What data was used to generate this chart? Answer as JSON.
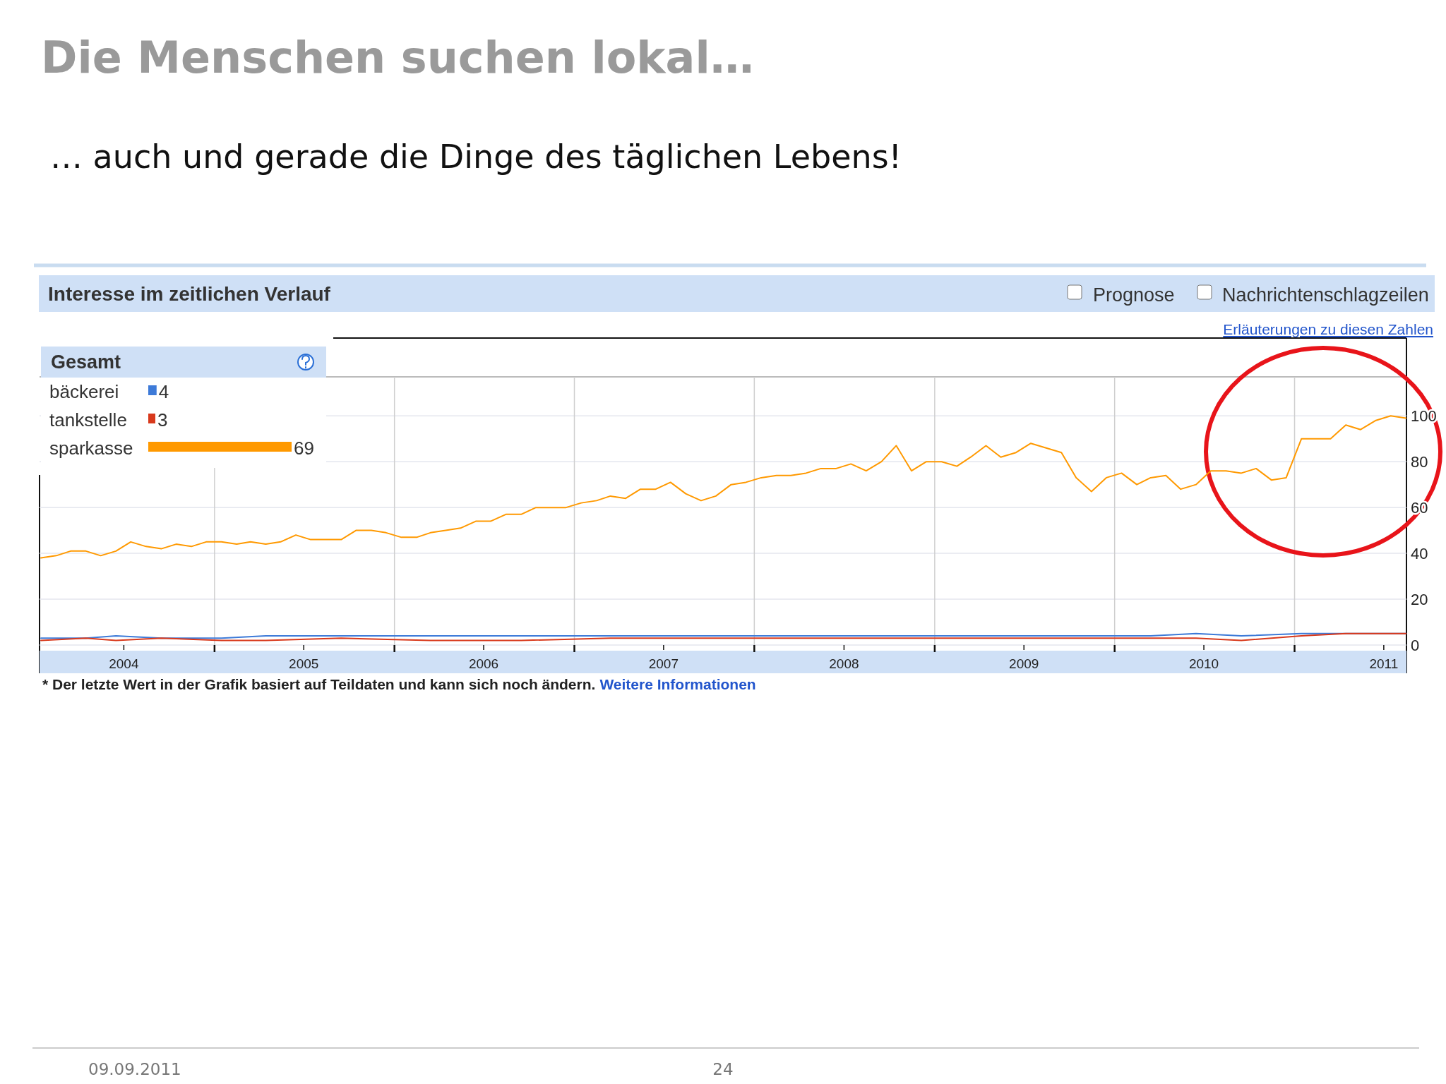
{
  "chart_data": {
    "type": "line",
    "title": "Die Menschen suchen lokal…",
    "subtitle": "… auch und gerade die Dinge des täglichen Lebens!",
    "legend_title": "Gesamt",
    "legend": "top left",
    "grid": true,
    "xlim": [
      "2004-01-12",
      "2011-08-16"
    ],
    "ylim": [
      0,
      117
    ],
    "yticks": [
      0,
      20,
      40,
      60,
      80,
      100
    ],
    "xticks": [
      {
        "value": "2004-07-01",
        "label": "2004"
      },
      {
        "value": "2005-01-01",
        "label": null
      },
      {
        "value": "2005-07-01",
        "label": "2005"
      },
      {
        "value": "2006-01-01",
        "label": null
      },
      {
        "value": "2006-07-01",
        "label": "2006"
      },
      {
        "value": "2007-01-01",
        "label": null
      },
      {
        "value": "2007-07-01",
        "label": "2007"
      },
      {
        "value": "2008-01-01",
        "label": null
      },
      {
        "value": "2008-07-01",
        "label": "2008"
      },
      {
        "value": "2009-01-01",
        "label": null
      },
      {
        "value": "2009-07-01",
        "label": "2009"
      },
      {
        "value": "2010-01-01",
        "label": null
      },
      {
        "value": "2010-07-01",
        "label": "2010"
      },
      {
        "value": "2011-01-01",
        "label": null
      },
      {
        "value": "2011-07-01",
        "label": "2011"
      }
    ],
    "series": [
      {
        "name": "bäckerei",
        "color": "#3d7ad8",
        "x": [
          "2004-01-15",
          "2004-04-15",
          "2004-06-15",
          "2004-09-15",
          "2005-01-15",
          "2005-04-15",
          "2005-09-15",
          "2006-03-15",
          "2006-09-15",
          "2007-03-15",
          "2007-09-15",
          "2008-03-15",
          "2008-09-15",
          "2009-03-15",
          "2009-09-15",
          "2010-03-15",
          "2010-06-15",
          "2010-09-15",
          "2011-01-15",
          "2011-04-15",
          "2011-08-15"
        ],
        "values": [
          3,
          3,
          4,
          3,
          3,
          4,
          4,
          4,
          4,
          4,
          4,
          4,
          4,
          4,
          4,
          4,
          5,
          4,
          5,
          5,
          5
        ]
      },
      {
        "name": "tankstelle",
        "color": "#d8391c",
        "x": [
          "2004-01-15",
          "2004-04-15",
          "2004-06-15",
          "2004-09-15",
          "2005-01-15",
          "2005-04-15",
          "2005-09-15",
          "2006-03-15",
          "2006-09-15",
          "2007-03-15",
          "2007-09-15",
          "2008-03-15",
          "2008-09-15",
          "2009-03-15",
          "2009-09-15",
          "2010-03-15",
          "2010-06-15",
          "2010-09-15",
          "2011-01-15",
          "2011-04-15",
          "2011-08-15"
        ],
        "values": [
          2,
          3,
          2,
          3,
          2,
          2,
          3,
          2,
          2,
          3,
          3,
          3,
          3,
          3,
          3,
          3,
          3,
          2,
          4,
          5,
          5
        ]
      },
      {
        "name": "sparkasse",
        "color": "#ff9900",
        "x": [
          "2004-01-15",
          "2004-02-15",
          "2004-03-15",
          "2004-04-15",
          "2004-05-15",
          "2004-06-15",
          "2004-07-15",
          "2004-08-15",
          "2004-09-15",
          "2004-10-15",
          "2004-11-15",
          "2004-12-15",
          "2005-01-15",
          "2005-02-15",
          "2005-03-15",
          "2005-04-15",
          "2005-05-15",
          "2005-06-15",
          "2005-07-15",
          "2005-08-15",
          "2005-09-15",
          "2005-10-15",
          "2005-11-15",
          "2005-12-15",
          "2006-01-15",
          "2006-02-15",
          "2006-03-15",
          "2006-04-15",
          "2006-05-15",
          "2006-06-15",
          "2006-07-15",
          "2006-08-15",
          "2006-09-15",
          "2006-10-15",
          "2006-11-15",
          "2006-12-15",
          "2007-01-15",
          "2007-02-15",
          "2007-03-15",
          "2007-04-15",
          "2007-05-15",
          "2007-06-15",
          "2007-07-15",
          "2007-08-15",
          "2007-09-15",
          "2007-10-15",
          "2007-11-15",
          "2007-12-15",
          "2008-01-15",
          "2008-02-15",
          "2008-03-15",
          "2008-04-15",
          "2008-05-15",
          "2008-06-15",
          "2008-07-15",
          "2008-08-15",
          "2008-09-15",
          "2008-10-15",
          "2008-11-15",
          "2008-12-15",
          "2009-01-15",
          "2009-02-15",
          "2009-03-15",
          "2009-04-15",
          "2009-05-15",
          "2009-06-15",
          "2009-07-15",
          "2009-08-15",
          "2009-09-15",
          "2009-10-15",
          "2009-11-15",
          "2009-12-15",
          "2010-01-15",
          "2010-02-15",
          "2010-03-15",
          "2010-04-15",
          "2010-05-15",
          "2010-06-15",
          "2010-07-15",
          "2010-08-15",
          "2010-09-15",
          "2010-10-15",
          "2010-11-15",
          "2010-12-15",
          "2011-01-15",
          "2011-02-15",
          "2011-03-15",
          "2011-04-15",
          "2011-05-15",
          "2011-06-15",
          "2011-07-15",
          "2011-08-15"
        ],
        "values": [
          38,
          39,
          41,
          41,
          39,
          41,
          45,
          43,
          42,
          44,
          43,
          45,
          45,
          44,
          45,
          44,
          45,
          48,
          46,
          46,
          46,
          50,
          50,
          49,
          47,
          47,
          49,
          50,
          51,
          54,
          54,
          57,
          57,
          60,
          60,
          60,
          62,
          63,
          65,
          64,
          68,
          68,
          71,
          66,
          63,
          65,
          70,
          71,
          73,
          74,
          74,
          75,
          77,
          77,
          79,
          76,
          80,
          87,
          76,
          80,
          80,
          78,
          82,
          87,
          82,
          84,
          88,
          86,
          84,
          73,
          67,
          73,
          75,
          70,
          73,
          74,
          68,
          70,
          76,
          76,
          75,
          77,
          72,
          73,
          90,
          90,
          90,
          96,
          94,
          98,
          100,
          99
        ]
      }
    ],
    "annotations": [
      "Interesse im zeitlichen Verlauf",
      "Prognose",
      "Nachrichtenschlagzeilen",
      "Erläuterungen zu diesen Zahlen",
      "4",
      "3",
      "69",
      "* Der letzte Wert in der Grafik basiert auf Teildaten und kann sich noch ändern.",
      "Weitere Informationen",
      "09.09.2011",
      "24"
    ]
  }
}
